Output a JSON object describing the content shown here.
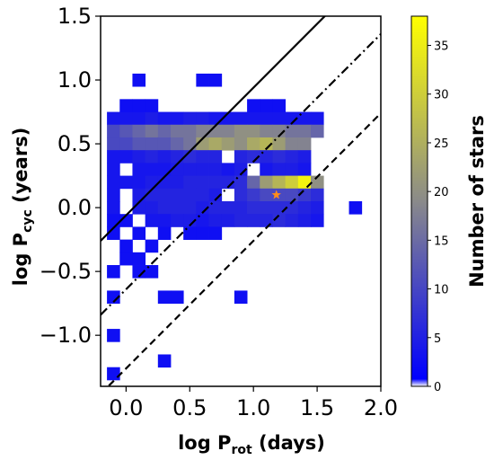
{
  "chart_data": {
    "type": "heatmap",
    "title": "",
    "xlabel": {
      "main": "log P",
      "sub": "rot",
      "rest": " (days)"
    },
    "ylabel": {
      "main": "log P",
      "sub": "cyc",
      "rest": " (years)"
    },
    "xlim": [
      -0.2,
      2.0
    ],
    "ylim": [
      -1.4,
      1.5
    ],
    "x_ticks": [
      "0.0",
      "0.5",
      "1.0",
      "1.5",
      "2.0"
    ],
    "y_ticks": [
      "1.5",
      "1.0",
      "0.5",
      "0.0",
      "-0.5",
      "-1.0"
    ],
    "colorbar": {
      "label": "Number of stars",
      "min": 0,
      "max": 38,
      "ticks": [
        "0",
        "5",
        "10",
        "15",
        "20",
        "25",
        "30",
        "35"
      ],
      "colors": [
        "#ffffff",
        "#0000ff",
        "#8a8a8a",
        "#ffff00"
      ]
    },
    "bin_width": 0.1,
    "cells": [
      {
        "x": -0.1,
        "y": 0.7,
        "count": 3
      },
      {
        "x": 0.0,
        "y": 0.7,
        "count": 3
      },
      {
        "x": 0.1,
        "y": 0.7,
        "count": 3
      },
      {
        "x": 0.2,
        "y": 0.7,
        "count": 4
      },
      {
        "x": 0.3,
        "y": 0.7,
        "count": 3
      },
      {
        "x": 0.4,
        "y": 0.7,
        "count": 3
      },
      {
        "x": 0.5,
        "y": 0.7,
        "count": 4
      },
      {
        "x": 0.6,
        "y": 0.7,
        "count": 4
      },
      {
        "x": 0.7,
        "y": 0.7,
        "count": 3
      },
      {
        "x": 0.8,
        "y": 0.7,
        "count": 3
      },
      {
        "x": 0.9,
        "y": 0.7,
        "count": 3
      },
      {
        "x": 1.0,
        "y": 0.7,
        "count": 3
      },
      {
        "x": 1.1,
        "y": 0.7,
        "count": 3
      },
      {
        "x": 1.2,
        "y": 0.7,
        "count": 3
      },
      {
        "x": 1.3,
        "y": 0.7,
        "count": 3
      },
      {
        "x": 1.4,
        "y": 0.7,
        "count": 3
      },
      {
        "x": 1.5,
        "y": 0.7,
        "count": 3
      },
      {
        "x": -0.1,
        "y": 0.6,
        "count": 10
      },
      {
        "x": 0.0,
        "y": 0.6,
        "count": 12
      },
      {
        "x": 0.1,
        "y": 0.6,
        "count": 14
      },
      {
        "x": 0.2,
        "y": 0.6,
        "count": 16
      },
      {
        "x": 0.3,
        "y": 0.6,
        "count": 14
      },
      {
        "x": 0.4,
        "y": 0.6,
        "count": 16
      },
      {
        "x": 0.5,
        "y": 0.6,
        "count": 16
      },
      {
        "x": 0.6,
        "y": 0.6,
        "count": 18
      },
      {
        "x": 0.7,
        "y": 0.6,
        "count": 18
      },
      {
        "x": 0.8,
        "y": 0.6,
        "count": 18
      },
      {
        "x": 0.9,
        "y": 0.6,
        "count": 20
      },
      {
        "x": 1.0,
        "y": 0.6,
        "count": 20
      },
      {
        "x": 1.1,
        "y": 0.6,
        "count": 18
      },
      {
        "x": 1.2,
        "y": 0.6,
        "count": 18
      },
      {
        "x": 1.3,
        "y": 0.6,
        "count": 16
      },
      {
        "x": 1.4,
        "y": 0.6,
        "count": 16
      },
      {
        "x": 1.5,
        "y": 0.6,
        "count": 14
      },
      {
        "x": -0.1,
        "y": 0.5,
        "count": 10
      },
      {
        "x": 0.0,
        "y": 0.5,
        "count": 10
      },
      {
        "x": 0.1,
        "y": 0.5,
        "count": 12
      },
      {
        "x": 0.2,
        "y": 0.5,
        "count": 12
      },
      {
        "x": 0.3,
        "y": 0.5,
        "count": 12
      },
      {
        "x": 0.4,
        "y": 0.5,
        "count": 14
      },
      {
        "x": 0.5,
        "y": 0.5,
        "count": 16
      },
      {
        "x": 0.6,
        "y": 0.5,
        "count": 22
      },
      {
        "x": 0.7,
        "y": 0.5,
        "count": 24
      },
      {
        "x": 0.8,
        "y": 0.5,
        "count": 22
      },
      {
        "x": 0.9,
        "y": 0.5,
        "count": 20
      },
      {
        "x": 1.0,
        "y": 0.5,
        "count": 24
      },
      {
        "x": 1.1,
        "y": 0.5,
        "count": 26
      },
      {
        "x": 1.2,
        "y": 0.5,
        "count": 22
      },
      {
        "x": 1.3,
        "y": 0.5,
        "count": 18
      },
      {
        "x": 1.4,
        "y": 0.5,
        "count": 18
      },
      {
        "x": -0.1,
        "y": 0.4,
        "count": 3
      },
      {
        "x": 0.0,
        "y": 0.4,
        "count": 3
      },
      {
        "x": 0.1,
        "y": 0.4,
        "count": 4
      },
      {
        "x": 0.2,
        "y": 0.4,
        "count": 5
      },
      {
        "x": 0.3,
        "y": 0.4,
        "count": 4
      },
      {
        "x": 0.4,
        "y": 0.4,
        "count": 5
      },
      {
        "x": 0.5,
        "y": 0.4,
        "count": 6
      },
      {
        "x": 0.6,
        "y": 0.4,
        "count": 5
      },
      {
        "x": 0.7,
        "y": 0.4,
        "count": 5
      },
      {
        "x": 0.9,
        "y": 0.4,
        "count": 5
      },
      {
        "x": 1.0,
        "y": 0.4,
        "count": 6
      },
      {
        "x": 1.1,
        "y": 0.4,
        "count": 5
      },
      {
        "x": 1.2,
        "y": 0.4,
        "count": 6
      },
      {
        "x": 1.3,
        "y": 0.4,
        "count": 5
      },
      {
        "x": 1.4,
        "y": 0.4,
        "count": 4
      },
      {
        "x": -0.1,
        "y": 0.3,
        "count": 3
      },
      {
        "x": 0.1,
        "y": 0.3,
        "count": 3
      },
      {
        "x": 0.2,
        "y": 0.3,
        "count": 3
      },
      {
        "x": 0.3,
        "y": 0.3,
        "count": 3
      },
      {
        "x": 0.4,
        "y": 0.3,
        "count": 4
      },
      {
        "x": 0.5,
        "y": 0.3,
        "count": 4
      },
      {
        "x": 0.6,
        "y": 0.3,
        "count": 4
      },
      {
        "x": 0.7,
        "y": 0.3,
        "count": 4
      },
      {
        "x": 0.8,
        "y": 0.3,
        "count": 3
      },
      {
        "x": 0.9,
        "y": 0.3,
        "count": 4
      },
      {
        "x": 1.1,
        "y": 0.3,
        "count": 3
      },
      {
        "x": 1.2,
        "y": 0.3,
        "count": 4
      },
      {
        "x": 1.3,
        "y": 0.3,
        "count": 4
      },
      {
        "x": 1.4,
        "y": 0.3,
        "count": 3
      },
      {
        "x": -0.1,
        "y": 0.2,
        "count": 3
      },
      {
        "x": 0.0,
        "y": 0.2,
        "count": 3
      },
      {
        "x": 0.1,
        "y": 0.2,
        "count": 3
      },
      {
        "x": 0.2,
        "y": 0.2,
        "count": 4
      },
      {
        "x": 0.3,
        "y": 0.2,
        "count": 4
      },
      {
        "x": 0.4,
        "y": 0.2,
        "count": 4
      },
      {
        "x": 0.5,
        "y": 0.2,
        "count": 5
      },
      {
        "x": 0.6,
        "y": 0.2,
        "count": 5
      },
      {
        "x": 0.7,
        "y": 0.2,
        "count": 5
      },
      {
        "x": 0.8,
        "y": 0.2,
        "count": 5
      },
      {
        "x": 0.9,
        "y": 0.2,
        "count": 6
      },
      {
        "x": 1.0,
        "y": 0.2,
        "count": 14
      },
      {
        "x": 1.1,
        "y": 0.2,
        "count": 22
      },
      {
        "x": 1.2,
        "y": 0.2,
        "count": 26
      },
      {
        "x": 1.3,
        "y": 0.2,
        "count": 30
      },
      {
        "x": 1.4,
        "y": 0.2,
        "count": 36
      },
      {
        "x": 1.5,
        "y": 0.2,
        "count": 20
      },
      {
        "x": -0.1,
        "y": 0.1,
        "count": 3
      },
      {
        "x": 0.1,
        "y": 0.1,
        "count": 4
      },
      {
        "x": 0.2,
        "y": 0.1,
        "count": 5
      },
      {
        "x": 0.3,
        "y": 0.1,
        "count": 5
      },
      {
        "x": 0.4,
        "y": 0.1,
        "count": 5
      },
      {
        "x": 0.5,
        "y": 0.1,
        "count": 5
      },
      {
        "x": 0.6,
        "y": 0.1,
        "count": 5
      },
      {
        "x": 0.7,
        "y": 0.1,
        "count": 4
      },
      {
        "x": 0.9,
        "y": 0.1,
        "count": 6
      },
      {
        "x": 1.0,
        "y": 0.1,
        "count": 8
      },
      {
        "x": 1.1,
        "y": 0.1,
        "count": 10
      },
      {
        "x": 1.2,
        "y": 0.1,
        "count": 10
      },
      {
        "x": 1.3,
        "y": 0.1,
        "count": 10
      },
      {
        "x": 1.4,
        "y": 0.1,
        "count": 8
      },
      {
        "x": 1.5,
        "y": 0.1,
        "count": 6
      },
      {
        "x": -0.1,
        "y": 0.0,
        "count": 3
      },
      {
        "x": 0.1,
        "y": 0.0,
        "count": 4
      },
      {
        "x": 0.2,
        "y": 0.0,
        "count": 4
      },
      {
        "x": 0.3,
        "y": 0.0,
        "count": 5
      },
      {
        "x": 0.4,
        "y": 0.0,
        "count": 5
      },
      {
        "x": 0.5,
        "y": 0.0,
        "count": 5
      },
      {
        "x": 0.6,
        "y": 0.0,
        "count": 4
      },
      {
        "x": 0.7,
        "y": 0.0,
        "count": 5
      },
      {
        "x": 0.8,
        "y": 0.0,
        "count": 5
      },
      {
        "x": 0.9,
        "y": 0.0,
        "count": 5
      },
      {
        "x": 1.0,
        "y": 0.0,
        "count": 6
      },
      {
        "x": 1.1,
        "y": 0.0,
        "count": 6
      },
      {
        "x": 1.2,
        "y": 0.0,
        "count": 6
      },
      {
        "x": 1.3,
        "y": 0.0,
        "count": 6
      },
      {
        "x": 1.4,
        "y": 0.0,
        "count": 5
      },
      {
        "x": 1.5,
        "y": 0.0,
        "count": 4
      },
      {
        "x": 1.8,
        "y": 0.0,
        "count": 2
      },
      {
        "x": -0.1,
        "y": -0.1,
        "count": 2
      },
      {
        "x": 0.0,
        "y": -0.1,
        "count": 2
      },
      {
        "x": 0.2,
        "y": -0.1,
        "count": 3
      },
      {
        "x": 0.3,
        "y": -0.1,
        "count": 3
      },
      {
        "x": 0.4,
        "y": -0.1,
        "count": 4
      },
      {
        "x": 0.5,
        "y": -0.1,
        "count": 4
      },
      {
        "x": 0.6,
        "y": -0.1,
        "count": 3
      },
      {
        "x": 0.7,
        "y": -0.1,
        "count": 4
      },
      {
        "x": 0.8,
        "y": -0.1,
        "count": 4
      },
      {
        "x": 0.9,
        "y": -0.1,
        "count": 5
      },
      {
        "x": 1.0,
        "y": -0.1,
        "count": 5
      },
      {
        "x": 1.1,
        "y": -0.1,
        "count": 5
      },
      {
        "x": 1.2,
        "y": -0.1,
        "count": 6
      },
      {
        "x": 1.3,
        "y": -0.1,
        "count": 5
      },
      {
        "x": 1.4,
        "y": -0.1,
        "count": 4
      },
      {
        "x": 1.5,
        "y": -0.1,
        "count": 3
      },
      {
        "x": -0.1,
        "y": -0.2,
        "count": 2
      },
      {
        "x": 0.1,
        "y": -0.2,
        "count": 2
      },
      {
        "x": 0.3,
        "y": -0.2,
        "count": 2
      },
      {
        "x": 0.5,
        "y": -0.2,
        "count": 2
      },
      {
        "x": 0.6,
        "y": -0.2,
        "count": 2
      },
      {
        "x": 0.7,
        "y": -0.2,
        "count": 2
      },
      {
        "x": 0.0,
        "y": -0.3,
        "count": 2
      },
      {
        "x": 0.2,
        "y": -0.3,
        "count": 2
      },
      {
        "x": 0.0,
        "y": -0.4,
        "count": 2
      },
      {
        "x": 0.1,
        "y": -0.4,
        "count": 2
      },
      {
        "x": -0.1,
        "y": -0.5,
        "count": 2
      },
      {
        "x": 0.1,
        "y": -0.5,
        "count": 2
      },
      {
        "x": 0.2,
        "y": -0.5,
        "count": 2
      },
      {
        "x": -0.1,
        "y": -0.7,
        "count": 2
      },
      {
        "x": 0.3,
        "y": -0.7,
        "count": 2
      },
      {
        "x": 0.4,
        "y": -0.7,
        "count": 2
      },
      {
        "x": 0.9,
        "y": -0.7,
        "count": 2
      },
      {
        "x": -0.1,
        "y": -1.0,
        "count": 2
      },
      {
        "x": 0.3,
        "y": -1.2,
        "count": 2
      },
      {
        "x": -0.1,
        "y": -1.3,
        "count": 2
      },
      {
        "x": 0.1,
        "y": 1.0,
        "count": 2
      },
      {
        "x": 0.6,
        "y": 1.0,
        "count": 2
      },
      {
        "x": 0.7,
        "y": 1.0,
        "count": 2
      },
      {
        "x": 0.0,
        "y": 0.8,
        "count": 2
      },
      {
        "x": 0.1,
        "y": 0.8,
        "count": 2
      },
      {
        "x": 0.2,
        "y": 0.8,
        "count": 2
      },
      {
        "x": 1.0,
        "y": 0.8,
        "count": 2
      },
      {
        "x": 1.1,
        "y": 0.8,
        "count": 2
      },
      {
        "x": 1.2,
        "y": 0.8,
        "count": 2
      }
    ],
    "lines": [
      {
        "style": "solid",
        "slope": 1,
        "intercept": -0.06
      },
      {
        "style": "dashdot",
        "slope": 1,
        "intercept": -0.64
      },
      {
        "style": "dashed",
        "slope": 1,
        "intercept": -1.26
      }
    ],
    "marker": {
      "shape": "star",
      "x": 1.18,
      "y": 0.1,
      "color": "#ff8c1a"
    }
  }
}
